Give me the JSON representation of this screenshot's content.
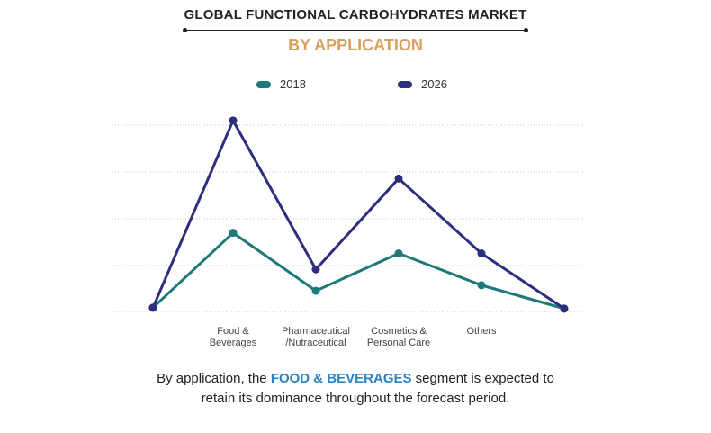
{
  "header": {
    "title": "GLOBAL  FUNCTIONAL CARBOHYDRATES MARKET",
    "subtitle": "BY APPLICATION"
  },
  "colors": {
    "series_2018": "#1c7a78",
    "series_2026": "#2e2e7e",
    "subtitle": "#d8a05e",
    "highlight": "#2a82c0"
  },
  "chart_data": {
    "type": "line",
    "title": "",
    "xlabel": "",
    "ylabel": "",
    "grid": true,
    "legend_position": "top",
    "ylim": [
      0,
      10
    ],
    "categories": [
      "",
      "Food & Beverages",
      "Pharmaceutical /Nutraceutical",
      "Cosmetics & Personal Care",
      "Others",
      ""
    ],
    "category_lines": [
      [],
      [
        "Food &",
        "Beverages"
      ],
      [
        "Pharmaceutical",
        "/Nutraceutical"
      ],
      [
        "Cosmetics &",
        "Personal Care"
      ],
      [
        "Others"
      ],
      []
    ],
    "series": [
      {
        "name": "2018",
        "values": [
          0.2,
          4.2,
          1.1,
          3.1,
          1.4,
          0.15
        ]
      },
      {
        "name": "2026",
        "values": [
          0.2,
          10.2,
          2.25,
          7.1,
          3.1,
          0.15
        ]
      }
    ]
  },
  "caption": {
    "before": "By application, the ",
    "highlight": "FOOD & BEVERAGES",
    "after_line1": " segment is expected to",
    "line2": "retain its dominance throughout the forecast period."
  }
}
